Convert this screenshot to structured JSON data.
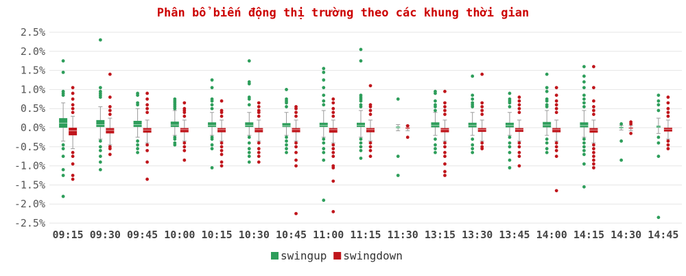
{
  "chart_data": {
    "type": "box",
    "title": "Phân bổ biến động thị trường theo các khung thời gian",
    "ylim": [
      -0.025,
      0.025
    ],
    "yticks": [
      -0.025,
      -0.02,
      -0.015,
      -0.01,
      -0.005,
      0,
      0.005,
      0.01,
      0.015,
      0.02,
      0.025
    ],
    "ytick_labels": [
      "-2.5%",
      "-2.0%",
      "-1.5%",
      "-1.0%",
      "-0.5%",
      "0.0%",
      "0.5%",
      "1.0%",
      "1.5%",
      "2.0%",
      "2.5%"
    ],
    "categories": [
      "09:15",
      "09:30",
      "09:45",
      "10:00",
      "10:15",
      "10:30",
      "10:45",
      "11:00",
      "11:15",
      "11:30",
      "13:15",
      "13:30",
      "13:45",
      "14:00",
      "14:15",
      "14:30",
      "14:45"
    ],
    "legend_position": "bottom-center",
    "grid": true,
    "series": [
      {
        "name": "swingup",
        "color": "#2e9e5b",
        "box": [
          {
            "q1": 0.0,
            "median": 0.0012,
            "q3": 0.0025,
            "whisker_low": -0.0035,
            "whisker_high": 0.0065
          },
          {
            "q1": 0.0002,
            "median": 0.0008,
            "q3": 0.002,
            "whisker_low": -0.003,
            "whisker_high": 0.0055
          },
          {
            "q1": 0.0002,
            "median": 0.0008,
            "q3": 0.0018,
            "whisker_low": -0.0025,
            "whisker_high": 0.005
          },
          {
            "q1": 0.0002,
            "median": 0.0007,
            "q3": 0.0016,
            "whisker_low": -0.002,
            "whisker_high": 0.0045
          },
          {
            "q1": 0.0002,
            "median": 0.0006,
            "q3": 0.0014,
            "whisker_low": -0.002,
            "whisker_high": 0.004
          },
          {
            "q1": 0.0002,
            "median": 0.0006,
            "q3": 0.0014,
            "whisker_low": -0.002,
            "whisker_high": 0.004
          },
          {
            "q1": 0.0002,
            "median": 0.0005,
            "q3": 0.0012,
            "whisker_low": -0.002,
            "whisker_high": 0.004
          },
          {
            "q1": 0.0002,
            "median": 0.0006,
            "q3": 0.0013,
            "whisker_low": -0.0025,
            "whisker_high": 0.0045
          },
          {
            "q1": 0.0002,
            "median": 0.0006,
            "q3": 0.0013,
            "whisker_low": -0.0025,
            "whisker_high": 0.0045
          },
          {
            "q1": -0.0001,
            "median": 0.0001,
            "q3": 0.0003,
            "whisker_low": -0.0008,
            "whisker_high": 0.0008
          },
          {
            "q1": 0.0001,
            "median": 0.0006,
            "q3": 0.0014,
            "whisker_low": -0.002,
            "whisker_high": 0.004
          },
          {
            "q1": 0.0001,
            "median": 0.0006,
            "q3": 0.0013,
            "whisker_low": -0.002,
            "whisker_high": 0.004
          },
          {
            "q1": 0.0001,
            "median": 0.0006,
            "q3": 0.0013,
            "whisker_low": -0.002,
            "whisker_high": 0.004
          },
          {
            "q1": 0.0001,
            "median": 0.0007,
            "q3": 0.0015,
            "whisker_low": -0.002,
            "whisker_high": 0.0045
          },
          {
            "q1": 0.0001,
            "median": 0.0006,
            "q3": 0.0014,
            "whisker_low": -0.0025,
            "whisker_high": 0.0045
          },
          {
            "q1": -0.0001,
            "median": 0.0,
            "q3": 0.0002,
            "whisker_low": -0.0006,
            "whisker_high": 0.0006
          },
          {
            "q1": 0.0,
            "median": 0.0002,
            "q3": 0.0005,
            "whisker_low": -0.0015,
            "whisker_high": 0.0025
          }
        ],
        "outliers": [
          [
            0.0175,
            0.0145,
            0.0095,
            0.009,
            0.0085,
            -0.0045,
            -0.0055,
            -0.0075,
            -0.011,
            -0.0125,
            -0.018
          ],
          [
            0.023,
            0.0105,
            0.0095,
            0.009,
            0.0085,
            0.008,
            -0.0035,
            -0.005,
            -0.006,
            -0.0075,
            -0.009,
            -0.011
          ],
          [
            0.009,
            0.0085,
            0.0065,
            0.006,
            -0.0035,
            -0.0045,
            -0.0055,
            -0.0065
          ],
          [
            0.0075,
            0.007,
            0.0065,
            0.006,
            0.0055,
            0.005,
            -0.0025,
            -0.003,
            -0.004,
            -0.0045
          ],
          [
            0.0125,
            0.0105,
            0.0075,
            0.007,
            0.006,
            0.005,
            -0.0025,
            -0.003,
            -0.0045,
            -0.0055,
            -0.0105
          ],
          [
            0.0175,
            0.012,
            0.0115,
            0.008,
            0.0075,
            0.006,
            -0.0025,
            -0.004,
            -0.0055,
            -0.0065,
            -0.0075,
            -0.009
          ],
          [
            0.01,
            0.0075,
            0.007,
            0.0065,
            0.0055,
            -0.0025,
            -0.0035,
            -0.0045,
            -0.0055,
            -0.0065
          ],
          [
            0.0155,
            0.0145,
            0.0125,
            0.0105,
            0.0085,
            0.007,
            0.006,
            -0.003,
            -0.004,
            -0.0055,
            -0.0065,
            -0.0085,
            -0.019
          ],
          [
            0.0205,
            0.0175,
            0.0085,
            0.008,
            0.0075,
            0.007,
            0.006,
            0.0055,
            -0.003,
            -0.004,
            -0.005,
            -0.006,
            -0.008
          ],
          [
            0.0075,
            -0.0075,
            -0.0125
          ],
          [
            0.0095,
            0.009,
            0.007,
            0.006,
            0.0055,
            0.0045,
            -0.003,
            -0.0045,
            -0.0055,
            -0.0065
          ],
          [
            0.0135,
            0.0085,
            0.0075,
            0.0065,
            0.006,
            0.0055,
            -0.003,
            -0.0045,
            -0.0055,
            -0.0065
          ],
          [
            0.009,
            0.0075,
            0.007,
            0.0065,
            0.0055,
            -0.0025,
            -0.004,
            -0.005,
            -0.0065,
            -0.0085,
            -0.0105
          ],
          [
            0.014,
            0.0105,
            0.0095,
            0.0075,
            0.007,
            0.006,
            0.0055,
            -0.003,
            -0.004,
            -0.0055,
            -0.0065
          ],
          [
            0.016,
            0.0135,
            0.012,
            0.0105,
            0.0085,
            0.0075,
            0.0065,
            0.0055,
            -0.003,
            -0.004,
            -0.005,
            -0.006,
            -0.007,
            -0.0095,
            -0.0155
          ],
          [
            0.001,
            -0.0035,
            -0.0085
          ],
          [
            0.0085,
            0.007,
            0.006,
            0.0045,
            -0.0025,
            -0.004,
            -0.0075,
            -0.0235
          ]
        ]
      },
      {
        "name": "swingdown",
        "color": "#c0161c",
        "box": [
          {
            "q1": -0.002,
            "median": -0.0008,
            "q3": 0.0,
            "whisker_low": -0.0055,
            "whisker_high": 0.003
          },
          {
            "q1": -0.0015,
            "median": -0.0007,
            "q3": -0.0001,
            "whisker_low": -0.0045,
            "whisker_high": 0.0025
          },
          {
            "q1": -0.0013,
            "median": -0.0006,
            "q3": -0.0001,
            "whisker_low": -0.004,
            "whisker_high": 0.002
          },
          {
            "q1": -0.0012,
            "median": -0.0005,
            "q3": -0.0001,
            "whisker_low": -0.0035,
            "whisker_high": 0.002
          },
          {
            "q1": -0.0012,
            "median": -0.0005,
            "q3": -0.0001,
            "whisker_low": -0.0035,
            "whisker_high": 0.002
          },
          {
            "q1": -0.0012,
            "median": -0.0005,
            "q3": -0.0001,
            "whisker_low": -0.0035,
            "whisker_high": 0.002
          },
          {
            "q1": -0.0012,
            "median": -0.0005,
            "q3": -0.0001,
            "whisker_low": -0.0035,
            "whisker_high": 0.002
          },
          {
            "q1": -0.0013,
            "median": -0.0005,
            "q3": -0.0001,
            "whisker_low": -0.004,
            "whisker_high": 0.002
          },
          {
            "q1": -0.0012,
            "median": -0.0005,
            "q3": -0.0001,
            "whisker_low": -0.0035,
            "whisker_high": 0.002
          },
          {
            "q1": -0.0003,
            "median": -0.0001,
            "q3": 0.0001,
            "whisker_low": -0.0008,
            "whisker_high": 0.0006
          },
          {
            "q1": -0.0012,
            "median": -0.0005,
            "q3": -0.0001,
            "whisker_low": -0.0035,
            "whisker_high": 0.002
          },
          {
            "q1": -0.0011,
            "median": -0.0005,
            "q3": -0.0001,
            "whisker_low": -0.0035,
            "whisker_high": 0.002
          },
          {
            "q1": -0.0011,
            "median": -0.0005,
            "q3": -0.0001,
            "whisker_low": -0.0035,
            "whisker_high": 0.002
          },
          {
            "q1": -0.0012,
            "median": -0.0005,
            "q3": -0.0001,
            "whisker_low": -0.0035,
            "whisker_high": 0.002
          },
          {
            "q1": -0.0013,
            "median": -0.0006,
            "q3": -0.0001,
            "whisker_low": -0.004,
            "whisker_high": 0.002
          },
          {
            "q1": -0.0003,
            "median": -0.0001,
            "q3": 0.0001,
            "whisker_low": -0.0008,
            "whisker_high": 0.0006
          },
          {
            "q1": -0.001,
            "median": -0.0004,
            "q3": 0.0,
            "whisker_low": -0.003,
            "whisker_high": 0.002
          }
        ],
        "outliers": [
          [
            0.0105,
            0.009,
            0.0075,
            0.006,
            0.005,
            0.004,
            -0.0065,
            -0.0075,
            -0.0095,
            -0.0125,
            -0.0135
          ],
          [
            0.014,
            0.008,
            0.0055,
            0.0045,
            0.0035,
            -0.005,
            -0.0055,
            -0.007
          ],
          [
            0.009,
            0.0075,
            0.006,
            0.005,
            0.004,
            -0.0045,
            -0.006,
            -0.009,
            -0.0135
          ],
          [
            0.0065,
            0.005,
            0.0045,
            0.004,
            0.003,
            -0.004,
            -0.005,
            -0.006,
            -0.0085
          ],
          [
            0.007,
            0.0045,
            0.004,
            0.003,
            -0.004,
            -0.005,
            -0.006,
            -0.007,
            -0.009,
            -0.01
          ],
          [
            0.0065,
            0.0055,
            0.0045,
            0.004,
            0.003,
            -0.004,
            -0.0055,
            -0.0065,
            -0.0075,
            -0.009
          ],
          [
            0.0055,
            0.005,
            0.004,
            0.003,
            -0.004,
            -0.005,
            -0.0065,
            -0.0085,
            -0.01,
            -0.0225
          ],
          [
            0.0075,
            0.0065,
            0.005,
            0.004,
            0.003,
            -0.0045,
            -0.0055,
            -0.0065,
            -0.0075,
            -0.01,
            -0.0105,
            -0.014,
            -0.022
          ],
          [
            0.011,
            0.006,
            0.0055,
            0.0045,
            0.0035,
            -0.004,
            -0.005,
            -0.006,
            -0.0075
          ],
          [
            0.0005,
            -0.0025
          ],
          [
            0.0095,
            0.0065,
            0.0055,
            0.0045,
            0.0035,
            -0.004,
            -0.005,
            -0.0065,
            -0.0075,
            -0.0095,
            -0.0115,
            -0.0125
          ],
          [
            0.014,
            0.0065,
            0.0055,
            0.0045,
            0.0035,
            -0.004,
            -0.005,
            -0.0055
          ],
          [
            0.008,
            0.007,
            0.006,
            0.005,
            0.004,
            -0.004,
            -0.005,
            -0.0065,
            -0.0075,
            -0.01
          ],
          [
            0.0105,
            0.0085,
            0.007,
            0.006,
            0.005,
            0.004,
            -0.004,
            -0.005,
            -0.006,
            -0.0075,
            -0.0165
          ],
          [
            0.016,
            0.0105,
            0.007,
            0.0055,
            0.0045,
            0.0035,
            -0.0045,
            -0.0055,
            -0.0065,
            -0.0075,
            -0.0085,
            -0.0095,
            -0.0105
          ],
          [
            0.0015,
            0.001,
            -0.0015
          ],
          [
            0.008,
            0.0065,
            0.005,
            0.004,
            0.003,
            -0.0035,
            -0.0045,
            -0.0055
          ]
        ]
      }
    ]
  }
}
